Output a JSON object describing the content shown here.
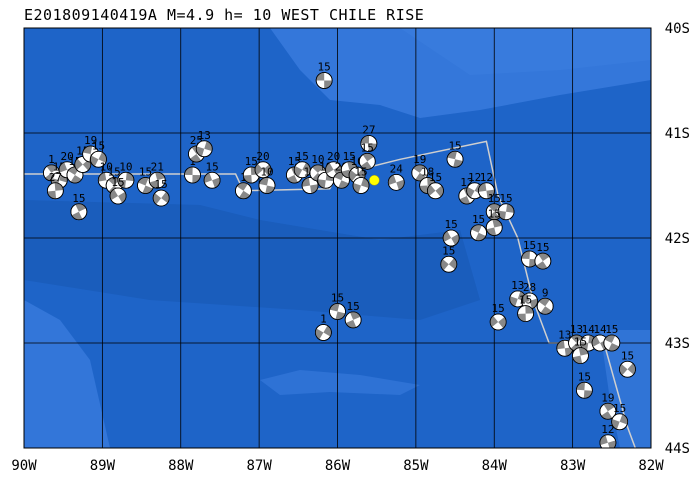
{
  "title": "E201809140419A M=4.9 h= 10 WEST CHILE RISE",
  "colors": {
    "ocean": "#1e64c8",
    "shallow": "#3c7ee0",
    "deep": "#1656b0",
    "grid": "#000000",
    "ridge": "#cfcfcf",
    "event": "#ffff00",
    "beachball_dark": "#888888",
    "beachball_light": "#ffffff"
  },
  "map": {
    "lon_range": [
      -90,
      -82
    ],
    "lat_range": [
      -44,
      -40
    ],
    "x_ticks": [
      {
        "lon": -90,
        "label": "90W"
      },
      {
        "lon": -89,
        "label": "89W"
      },
      {
        "lon": -88,
        "label": "88W"
      },
      {
        "lon": -87,
        "label": "87W"
      },
      {
        "lon": -86,
        "label": "86W"
      },
      {
        "lon": -85,
        "label": "85W"
      },
      {
        "lon": -84,
        "label": "84W"
      },
      {
        "lon": -83,
        "label": "83W"
      },
      {
        "lon": -82,
        "label": "82W"
      }
    ],
    "y_ticks": [
      {
        "lat": -40,
        "label": "40S"
      },
      {
        "lat": -41,
        "label": "41S"
      },
      {
        "lat": -42,
        "label": "42S"
      },
      {
        "lat": -43,
        "label": "43S"
      },
      {
        "lat": -44,
        "label": "44S"
      }
    ],
    "event": {
      "lon": -85.53,
      "lat": -41.45
    },
    "ridge": [
      [
        -90,
        -41.39
      ],
      [
        -87.3,
        -41.39
      ],
      [
        -87.2,
        -41.55
      ],
      [
        -86.1,
        -41.53
      ],
      [
        -86.0,
        -41.4
      ],
      [
        -85.2,
        -41.25
      ],
      [
        -84.1,
        -41.08
      ],
      [
        -83.95,
        -41.6
      ],
      [
        -83.7,
        -42.0
      ],
      [
        -83.5,
        -42.6
      ],
      [
        -83.3,
        -43.0
      ],
      [
        -82.6,
        -43.0
      ],
      [
        -82.3,
        -43.8
      ],
      [
        -82.2,
        -44
      ]
    ],
    "mechanisms": [
      {
        "lon": -86.17,
        "lat": -40.5,
        "label": "15"
      },
      {
        "lon": -89.65,
        "lat": -41.38,
        "label": "1"
      },
      {
        "lon": -89.55,
        "lat": -41.45,
        "label": "15"
      },
      {
        "lon": -89.45,
        "lat": -41.35,
        "label": "20"
      },
      {
        "lon": -89.35,
        "lat": -41.4,
        "label": "15"
      },
      {
        "lon": -89.6,
        "lat": -41.55,
        "label": "27"
      },
      {
        "lon": -89.25,
        "lat": -41.3,
        "label": "15"
      },
      {
        "lon": -89.15,
        "lat": -41.2,
        "label": "19"
      },
      {
        "lon": -89.3,
        "lat": -41.75,
        "label": "15"
      },
      {
        "lon": -89.05,
        "lat": -41.25,
        "label": "15"
      },
      {
        "lon": -88.95,
        "lat": -41.45,
        "label": "10"
      },
      {
        "lon": -88.85,
        "lat": -41.5,
        "label": "15"
      },
      {
        "lon": -88.7,
        "lat": -41.45,
        "label": "10"
      },
      {
        "lon": -88.8,
        "lat": -41.6,
        "label": "15"
      },
      {
        "lon": -88.45,
        "lat": -41.5,
        "label": "15"
      },
      {
        "lon": -88.3,
        "lat": -41.45,
        "label": "21"
      },
      {
        "lon": -88.25,
        "lat": -41.62,
        "label": "15"
      },
      {
        "lon": -87.85,
        "lat": -41.4,
        "label": "1"
      },
      {
        "lon": -87.8,
        "lat": -41.2,
        "label": "25"
      },
      {
        "lon": -87.7,
        "lat": -41.15,
        "label": "13"
      },
      {
        "lon": -87.6,
        "lat": -41.45,
        "label": "15"
      },
      {
        "lon": -87.2,
        "lat": -41.55,
        "label": "1"
      },
      {
        "lon": -87.1,
        "lat": -41.4,
        "label": "15"
      },
      {
        "lon": -86.95,
        "lat": -41.35,
        "label": "20"
      },
      {
        "lon": -86.9,
        "lat": -41.5,
        "label": "10"
      },
      {
        "lon": -86.55,
        "lat": -41.4,
        "label": "15"
      },
      {
        "lon": -86.45,
        "lat": -41.35,
        "label": "15"
      },
      {
        "lon": -86.35,
        "lat": -41.5,
        "label": "15"
      },
      {
        "lon": -86.25,
        "lat": -41.38,
        "label": "10"
      },
      {
        "lon": -86.15,
        "lat": -41.45,
        "label": "19"
      },
      {
        "lon": -86.05,
        "lat": -41.35,
        "label": "20"
      },
      {
        "lon": -85.95,
        "lat": -41.45,
        "label": "20"
      },
      {
        "lon": -85.85,
        "lat": -41.35,
        "label": "15"
      },
      {
        "lon": -85.75,
        "lat": -41.4,
        "label": "10"
      },
      {
        "lon": -85.6,
        "lat": -41.1,
        "label": "27"
      },
      {
        "lon": -85.62,
        "lat": -41.27,
        "label": "15"
      },
      {
        "lon": -85.7,
        "lat": -41.5,
        "label": "15"
      },
      {
        "lon": -85.25,
        "lat": -41.47,
        "label": "24"
      },
      {
        "lon": -84.95,
        "lat": -41.38,
        "label": "19"
      },
      {
        "lon": -84.85,
        "lat": -41.5,
        "label": "18"
      },
      {
        "lon": -84.75,
        "lat": -41.55,
        "label": "15"
      },
      {
        "lon": -84.5,
        "lat": -41.25,
        "label": "15"
      },
      {
        "lon": -84.35,
        "lat": -41.6,
        "label": "12"
      },
      {
        "lon": -84.25,
        "lat": -41.55,
        "label": "12"
      },
      {
        "lon": -84.1,
        "lat": -41.55,
        "label": "12"
      },
      {
        "lon": -84.0,
        "lat": -41.75,
        "label": "15"
      },
      {
        "lon": -83.85,
        "lat": -41.75,
        "label": "15"
      },
      {
        "lon": -84.55,
        "lat": -42.0,
        "label": "15"
      },
      {
        "lon": -84.2,
        "lat": -41.95,
        "label": "15"
      },
      {
        "lon": -84.0,
        "lat": -41.9,
        "label": "15"
      },
      {
        "lon": -84.58,
        "lat": -42.25,
        "label": "15"
      },
      {
        "lon": -83.55,
        "lat": -42.2,
        "label": "15"
      },
      {
        "lon": -83.38,
        "lat": -42.22,
        "label": "15"
      },
      {
        "lon": -83.7,
        "lat": -42.58,
        "label": "13"
      },
      {
        "lon": -83.55,
        "lat": -42.6,
        "label": "28"
      },
      {
        "lon": -83.35,
        "lat": -42.65,
        "label": "9"
      },
      {
        "lon": -83.6,
        "lat": -42.72,
        "label": "15"
      },
      {
        "lon": -83.95,
        "lat": -42.8,
        "label": "15"
      },
      {
        "lon": -86.0,
        "lat": -42.7,
        "label": "15"
      },
      {
        "lon": -85.8,
        "lat": -42.78,
        "label": "15"
      },
      {
        "lon": -86.18,
        "lat": -42.9,
        "label": "1"
      },
      {
        "lon": -83.1,
        "lat": -43.05,
        "label": "13"
      },
      {
        "lon": -82.95,
        "lat": -43.0,
        "label": "13"
      },
      {
        "lon": -82.8,
        "lat": -43.0,
        "label": "14"
      },
      {
        "lon": -82.65,
        "lat": -43.0,
        "label": "14"
      },
      {
        "lon": -82.5,
        "lat": -43.0,
        "label": "15"
      },
      {
        "lon": -82.9,
        "lat": -43.12,
        "label": "15"
      },
      {
        "lon": -82.3,
        "lat": -43.25,
        "label": "15"
      },
      {
        "lon": -82.85,
        "lat": -43.45,
        "label": "15"
      },
      {
        "lon": -82.55,
        "lat": -43.65,
        "label": "19"
      },
      {
        "lon": -82.4,
        "lat": -43.75,
        "label": "15"
      },
      {
        "lon": -82.55,
        "lat": -43.95,
        "label": "12"
      }
    ]
  }
}
